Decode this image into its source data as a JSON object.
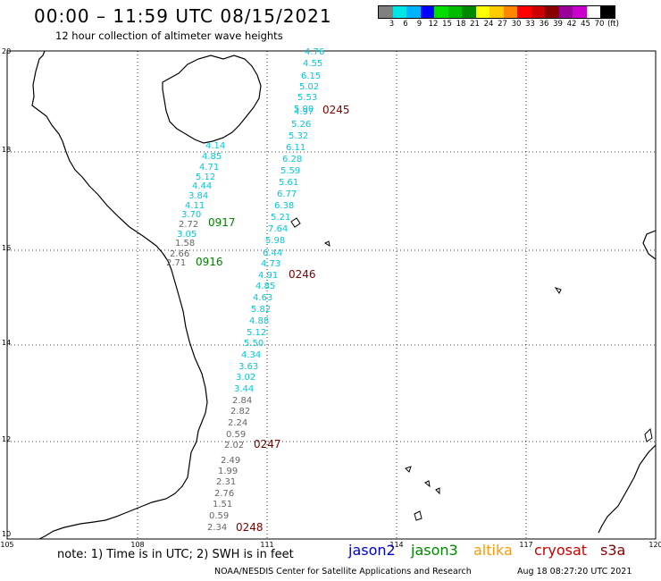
{
  "header": {
    "title": "00:00 – 11:59 UTC 08/15/2021",
    "subtitle": "12 hour collection of altimeter wave heights"
  },
  "colorbar": {
    "colors": [
      "#808080",
      "#00e5e5",
      "#00b2ff",
      "#0000ff",
      "#00dd00",
      "#00bb00",
      "#008800",
      "#ffff00",
      "#ffcc00",
      "#ff8800",
      "#ff0000",
      "#cc0000",
      "#880000",
      "#990099",
      "#cc00cc",
      "#ffffff",
      "#000000"
    ],
    "labels": [
      "3",
      "6",
      "9",
      "12",
      "15",
      "18",
      "21",
      "24",
      "27",
      "30",
      "33",
      "36",
      "39",
      "42",
      "45",
      "70",
      "(ft)"
    ]
  },
  "axes": {
    "x_ticks": [
      "105",
      "108",
      "111",
      "114",
      "117",
      "120"
    ],
    "y_ticks": [
      "20",
      "18",
      "16",
      "14",
      "12",
      "10"
    ]
  },
  "passes": [
    {
      "label": "0245",
      "color": "#7a0000"
    },
    {
      "label": "0917",
      "color": "#008000"
    },
    {
      "label": "0916",
      "color": "#008000"
    },
    {
      "label": "0246",
      "color": "#7a0000"
    },
    {
      "label": "0247",
      "color": "#7a0000"
    },
    {
      "label": "0248",
      "color": "#7a0000"
    }
  ],
  "wave_values_cyan_north": [
    "4.76",
    "4.55",
    "6.15",
    "5.02",
    "5.53",
    "5.90",
    "4.97",
    "5.26",
    "5.32",
    "6.11",
    "6.28",
    "5.59",
    "5.61",
    "6.77",
    "6.38",
    "5.21",
    "7.64",
    "5.98",
    "6.44",
    "4.73",
    "4.91",
    "4.85",
    "4.63",
    "5.82",
    "4.88",
    "5.12",
    "5.50",
    "4.34",
    "3.63",
    "3.02",
    "3.44"
  ],
  "wave_values_gray_south": [
    "2.84",
    "2.82",
    "2.24",
    "0.59",
    "2.02",
    "2.49",
    "1.99",
    "2.31",
    "2.76",
    "1.51",
    "0.59",
    "2.34"
  ],
  "wave_values_cyan_west": [
    "4.14",
    "4.85",
    "4.71",
    "5.12",
    "4.44",
    "3.84",
    "4.11",
    "3.70",
    "3.05"
  ],
  "wave_values_gray_west": [
    "2.72",
    "1.58",
    "2.66",
    "2.71"
  ],
  "legend": {
    "note": "note: 1) Time is in UTC; 2) SWH is in feet",
    "satellites": [
      {
        "name": "jason2",
        "color": "#0000cc"
      },
      {
        "name": "jason3",
        "color": "#008800"
      },
      {
        "name": "altika",
        "color": "#ff9900"
      },
      {
        "name": "cryosat",
        "color": "#cc0000"
      },
      {
        "name": "s3a",
        "color": "#880000"
      }
    ]
  },
  "footer": {
    "credit": "NOAA/NESDIS Center for Satellite Applications and Research",
    "timestamp": "Aug 18 08:27:20 UTC 2021"
  }
}
